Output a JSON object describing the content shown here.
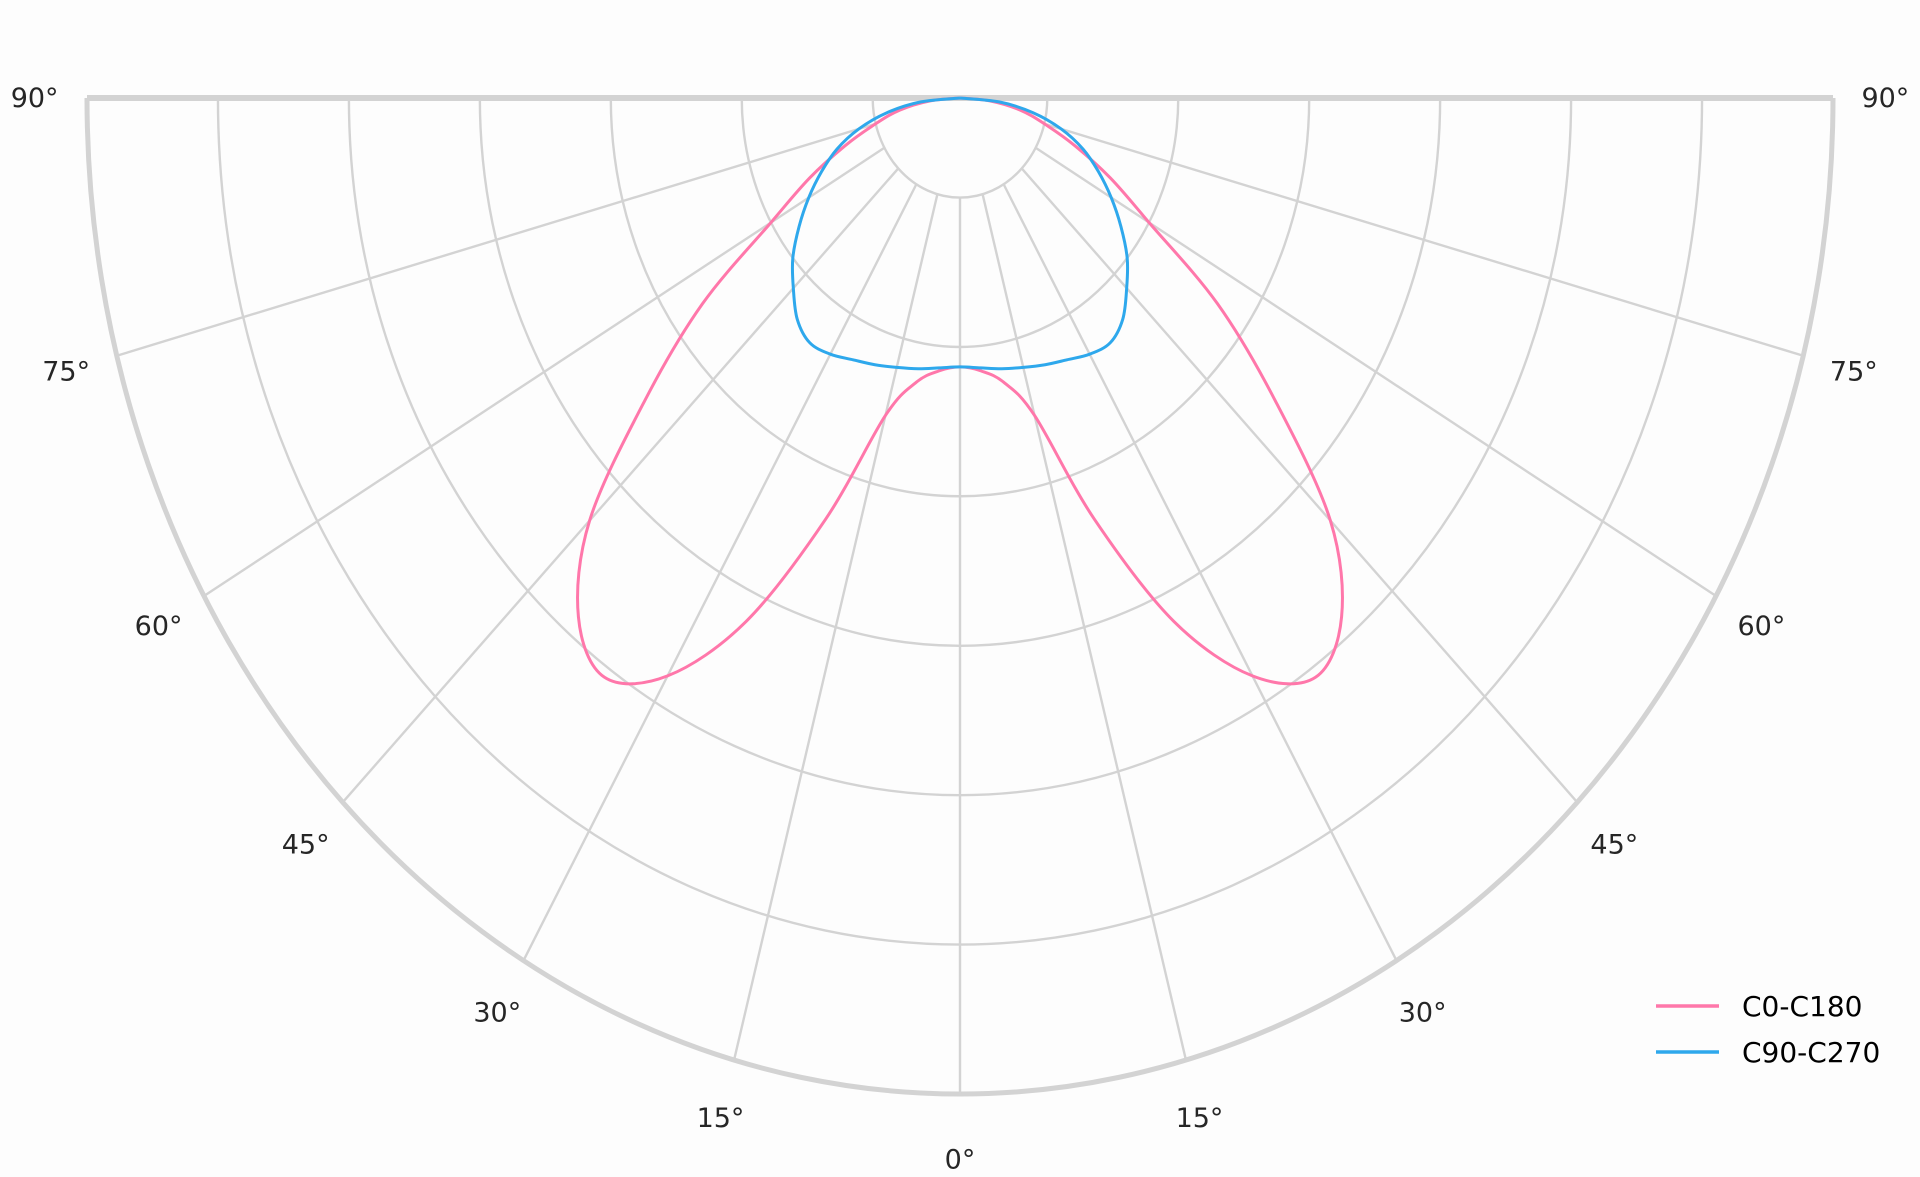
{
  "chart_data": {
    "type": "polar",
    "title": "",
    "angle_unit": "deg",
    "angle_ticks": [
      0,
      15,
      30,
      45,
      60,
      75,
      90
    ],
    "angle_tick_labels": [
      "0°",
      "15°",
      "30°",
      "45°",
      "60°",
      "75°",
      "90°"
    ],
    "radial_range": [
      0,
      1
    ],
    "radial_grid": [
      0.1,
      0.25,
      0.4,
      0.55,
      0.7,
      0.85,
      1.0
    ],
    "radial_tick_labels_shown": false,
    "grid": true,
    "symmetric": true,
    "legend_position": "bottom-right",
    "angles": [
      0,
      5,
      10,
      15,
      20,
      25,
      30,
      35,
      40,
      45,
      50,
      55,
      60,
      65,
      70,
      75,
      80,
      85,
      90
    ],
    "series": [
      {
        "name": "C0-C180",
        "color": "#ff77aa",
        "values": [
          0.27,
          0.275,
          0.29,
          0.33,
          0.45,
          0.58,
          0.67,
          0.71,
          0.68,
          0.6,
          0.47,
          0.36,
          0.25,
          0.19,
          0.14,
          0.1,
          0.07,
          0.035,
          0.0
        ]
      },
      {
        "name": "C90-C270",
        "color": "#2ea8ec",
        "values": [
          0.27,
          0.272,
          0.276,
          0.28,
          0.285,
          0.29,
          0.297,
          0.3,
          0.29,
          0.27,
          0.25,
          0.225,
          0.2,
          0.175,
          0.15,
          0.12,
          0.085,
          0.045,
          0.0
        ]
      }
    ],
    "grid_color": "#d3d3d3"
  }
}
